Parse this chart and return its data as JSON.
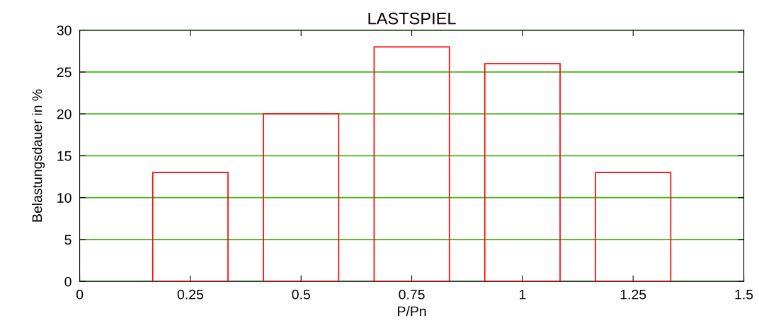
{
  "chart_data": {
    "type": "bar",
    "title": "LASTSPIEL",
    "xlabel": "P/Pn",
    "ylabel": "Belastungsdauer in %",
    "x": [
      0.25,
      0.5,
      0.75,
      1,
      1.25
    ],
    "series": [
      {
        "color": "#ff0000",
        "values": [
          13,
          20,
          28,
          26,
          13
        ]
      }
    ],
    "xlim": [
      0,
      1.5
    ],
    "xticks": [
      0,
      0.25,
      0.5,
      0.75,
      1,
      1.25,
      1.5
    ],
    "ylim": [
      0,
      30
    ],
    "yticks": [
      0,
      5,
      10,
      15,
      20,
      25,
      30
    ],
    "grid": "y",
    "legend": false
  }
}
